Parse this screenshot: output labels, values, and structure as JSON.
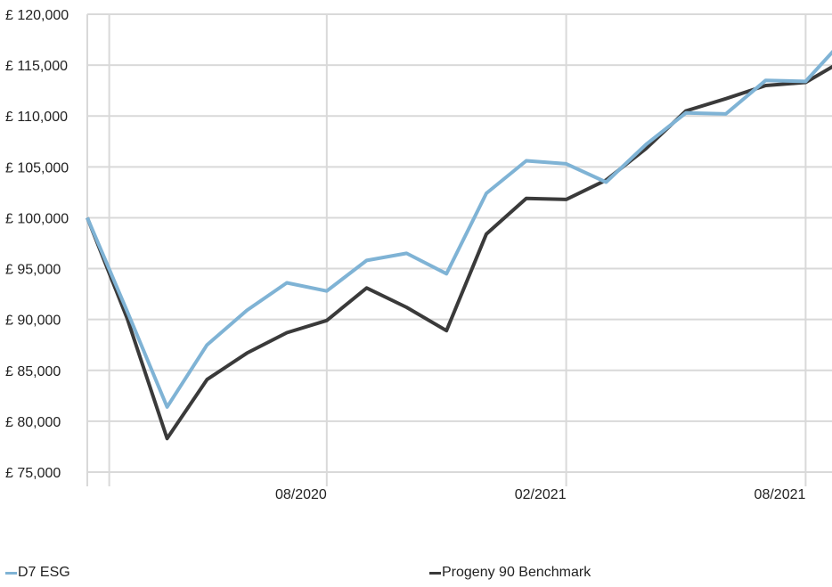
{
  "chart_data": {
    "type": "line",
    "y_tick_labels": [
      "£ 75,000",
      "£ 80,000",
      "£ 85,000",
      "£ 90,000",
      "£ 95,000",
      "£ 100,000",
      "£ 105,000",
      "£ 110,000",
      "£ 115,000",
      "£ 120,000"
    ],
    "y_ticks": [
      75000,
      80000,
      85000,
      90000,
      95000,
      100000,
      105000,
      110000,
      115000,
      120000
    ],
    "ylim": [
      75000,
      120000
    ],
    "x_tick_labels": [
      "08/2020",
      "02/2021",
      "08/2021"
    ],
    "x_tick_positions": [
      11,
      17,
      23
    ],
    "xlim": [
      0,
      23
    ],
    "grid": "both",
    "legend_position": "bottom",
    "series": [
      {
        "name": "D7 ESG",
        "color": "#7fb3d5",
        "values": [
          100000,
          90800,
          81400,
          87500,
          90900,
          93600,
          92800,
          95800,
          96500,
          94500,
          102400,
          105600,
          105300,
          103500,
          107200,
          110300,
          110200,
          113500,
          113400,
          117700
        ]
      },
      {
        "name": "Progeny 90 Benchmark",
        "color": "#3a3a3a",
        "values": [
          100000,
          90100,
          78300,
          84100,
          86700,
          88700,
          89900,
          93100,
          91200,
          88900,
          98400,
          101900,
          101800,
          103700,
          106800,
          110500,
          111700,
          113000,
          113300,
          115600
        ]
      }
    ]
  }
}
